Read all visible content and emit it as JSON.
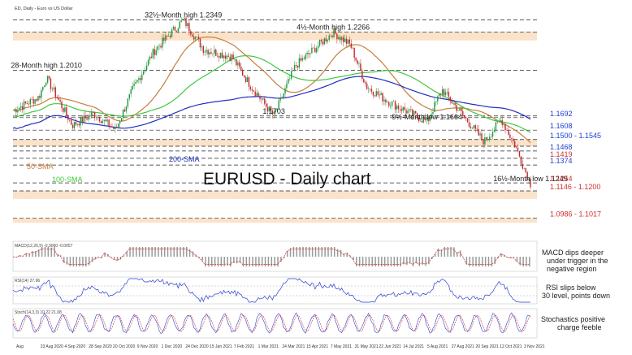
{
  "chart_data": {
    "type": "candlestick",
    "symbol_caption": "ED, Daily - Euro vs US Dollar",
    "title": "EURUSD - Daily chart",
    "ylim": [
      1.09,
      1.24
    ],
    "x_dates": [
      "2020-08-01",
      "2021-11-30"
    ],
    "x_tick_labels": [
      "Aug",
      "23 Aug 2020",
      "4 Sep 2020",
      "28 Sep 2020",
      "20 Oct 2020",
      "9 Nov 2020",
      "1 Dec 2020",
      "24 Dec 2020",
      "15 Jan 2021",
      "7 Feb 2021",
      "1 Mar 2021",
      "24 Mar 2021",
      "15 Apr 2021",
      "7 May 2021",
      "31 May 2021",
      "22 Jun 2021",
      "14 Jul 2021",
      "5 Aug 2021",
      "27 Aug 2021",
      "20 Sep 2021",
      "12 Oct 2021",
      "3 Nov 2021"
    ],
    "price_path": [
      {
        "date": "2020-08-01",
        "close": 1.174
      },
      {
        "date": "2020-08-25",
        "close": 1.183
      },
      {
        "date": "2020-09-01",
        "close": 1.196
      },
      {
        "date": "2020-09-25",
        "close": 1.164
      },
      {
        "date": "2020-10-15",
        "close": 1.172
      },
      {
        "date": "2020-11-04",
        "close": 1.161
      },
      {
        "date": "2020-11-20",
        "close": 1.188
      },
      {
        "date": "2020-12-10",
        "close": 1.214
      },
      {
        "date": "2021-01-06",
        "close": 1.2349
      },
      {
        "date": "2021-01-25",
        "close": 1.215
      },
      {
        "date": "2021-02-20",
        "close": 1.21
      },
      {
        "date": "2021-03-10",
        "close": 1.19
      },
      {
        "date": "2021-03-31",
        "close": 1.1703
      },
      {
        "date": "2021-04-20",
        "close": 1.204
      },
      {
        "date": "2021-05-25",
        "close": 1.2266
      },
      {
        "date": "2021-06-10",
        "close": 1.218
      },
      {
        "date": "2021-06-25",
        "close": 1.19
      },
      {
        "date": "2021-07-15",
        "close": 1.18
      },
      {
        "date": "2021-08-20",
        "close": 1.1664
      },
      {
        "date": "2021-09-03",
        "close": 1.188
      },
      {
        "date": "2021-10-12",
        "close": 1.153
      },
      {
        "date": "2021-10-28",
        "close": 1.168
      },
      {
        "date": "2021-11-10",
        "close": 1.15
      },
      {
        "date": "2021-11-24",
        "close": 1.1249
      }
    ],
    "moving_averages": [
      {
        "name": "50-SMA",
        "color": "#c87d3c"
      },
      {
        "name": "100-SMA",
        "color": "#3ec83e"
      },
      {
        "name": "200-SMA",
        "color": "#1f2fbf"
      }
    ],
    "levels": [
      {
        "value": 1.2349,
        "label": "",
        "style": "dashed"
      },
      {
        "value": 1.2266,
        "label": "",
        "style": "dashed"
      },
      {
        "value": 1.201,
        "label": "",
        "style": "dashed"
      },
      {
        "value": 1.1703,
        "label": "",
        "style": "dashed"
      },
      {
        "value": 1.1692,
        "label": "1.1692",
        "color": "#1f3fcf"
      },
      {
        "value": 1.1608,
        "label": "1.1608",
        "color": "#1f3fcf"
      },
      {
        "value": 1.1545,
        "label": "1.1500 - 1.1545",
        "color": "#1f3fcf"
      },
      {
        "value": 1.15,
        "label": "",
        "style": "dashed"
      },
      {
        "value": 1.1468,
        "label": "1.1468",
        "color": "#1f3fcf"
      },
      {
        "value": 1.1419,
        "label": "1.1419",
        "color": "#d03030"
      },
      {
        "value": 1.1374,
        "label": "1.1374",
        "color": "#1f3fcf"
      },
      {
        "value": 1.1254,
        "label": "1.1254",
        "color": "#d03030"
      },
      {
        "value": 1.12,
        "label": "1.1146 - 1.1200",
        "color": "#d03030"
      },
      {
        "value": 1.1017,
        "label": "1.0986 - 1.1017",
        "color": "#d03030"
      }
    ],
    "zones": [
      {
        "from": 1.221,
        "to": 1.227
      },
      {
        "from": 1.15,
        "to": 1.1545
      },
      {
        "from": 1.1146,
        "to": 1.12
      },
      {
        "from": 1.0986,
        "to": 1.1017
      }
    ],
    "annotations": [
      {
        "text": "32½-Month high 1.2349",
        "date": "2021-01-06",
        "value": 1.2349
      },
      {
        "text": "4½-Month high 1.2266",
        "date": "2021-05-25",
        "value": 1.2266
      },
      {
        "text": "28-Month high 1.2010",
        "date": "2020-09-01",
        "value": 1.201
      },
      {
        "text": "1.1703",
        "date": "2021-03-31",
        "value": 1.1703
      },
      {
        "text": "9½-Month low 1.1664",
        "date": "2021-08-20",
        "value": 1.1664
      },
      {
        "text": "16½-Month low 1.1249",
        "date": "2021-11-24",
        "value": 1.1249
      }
    ],
    "indicator_panels": [
      {
        "name": "MACD",
        "caption": "MACD(12,26,9) -0.0060 -0.0057",
        "note": "MACD dips deeper under trigger in the negative region"
      },
      {
        "name": "RSI",
        "caption": "RSI(14) 27.96",
        "note": "RSI slips below 30 level, points down"
      },
      {
        "name": "Stochastics",
        "caption": "Stoch(14,3,3) 10.22 21.08",
        "note": "Stochastics positive charge feeble"
      }
    ],
    "grid": false
  }
}
